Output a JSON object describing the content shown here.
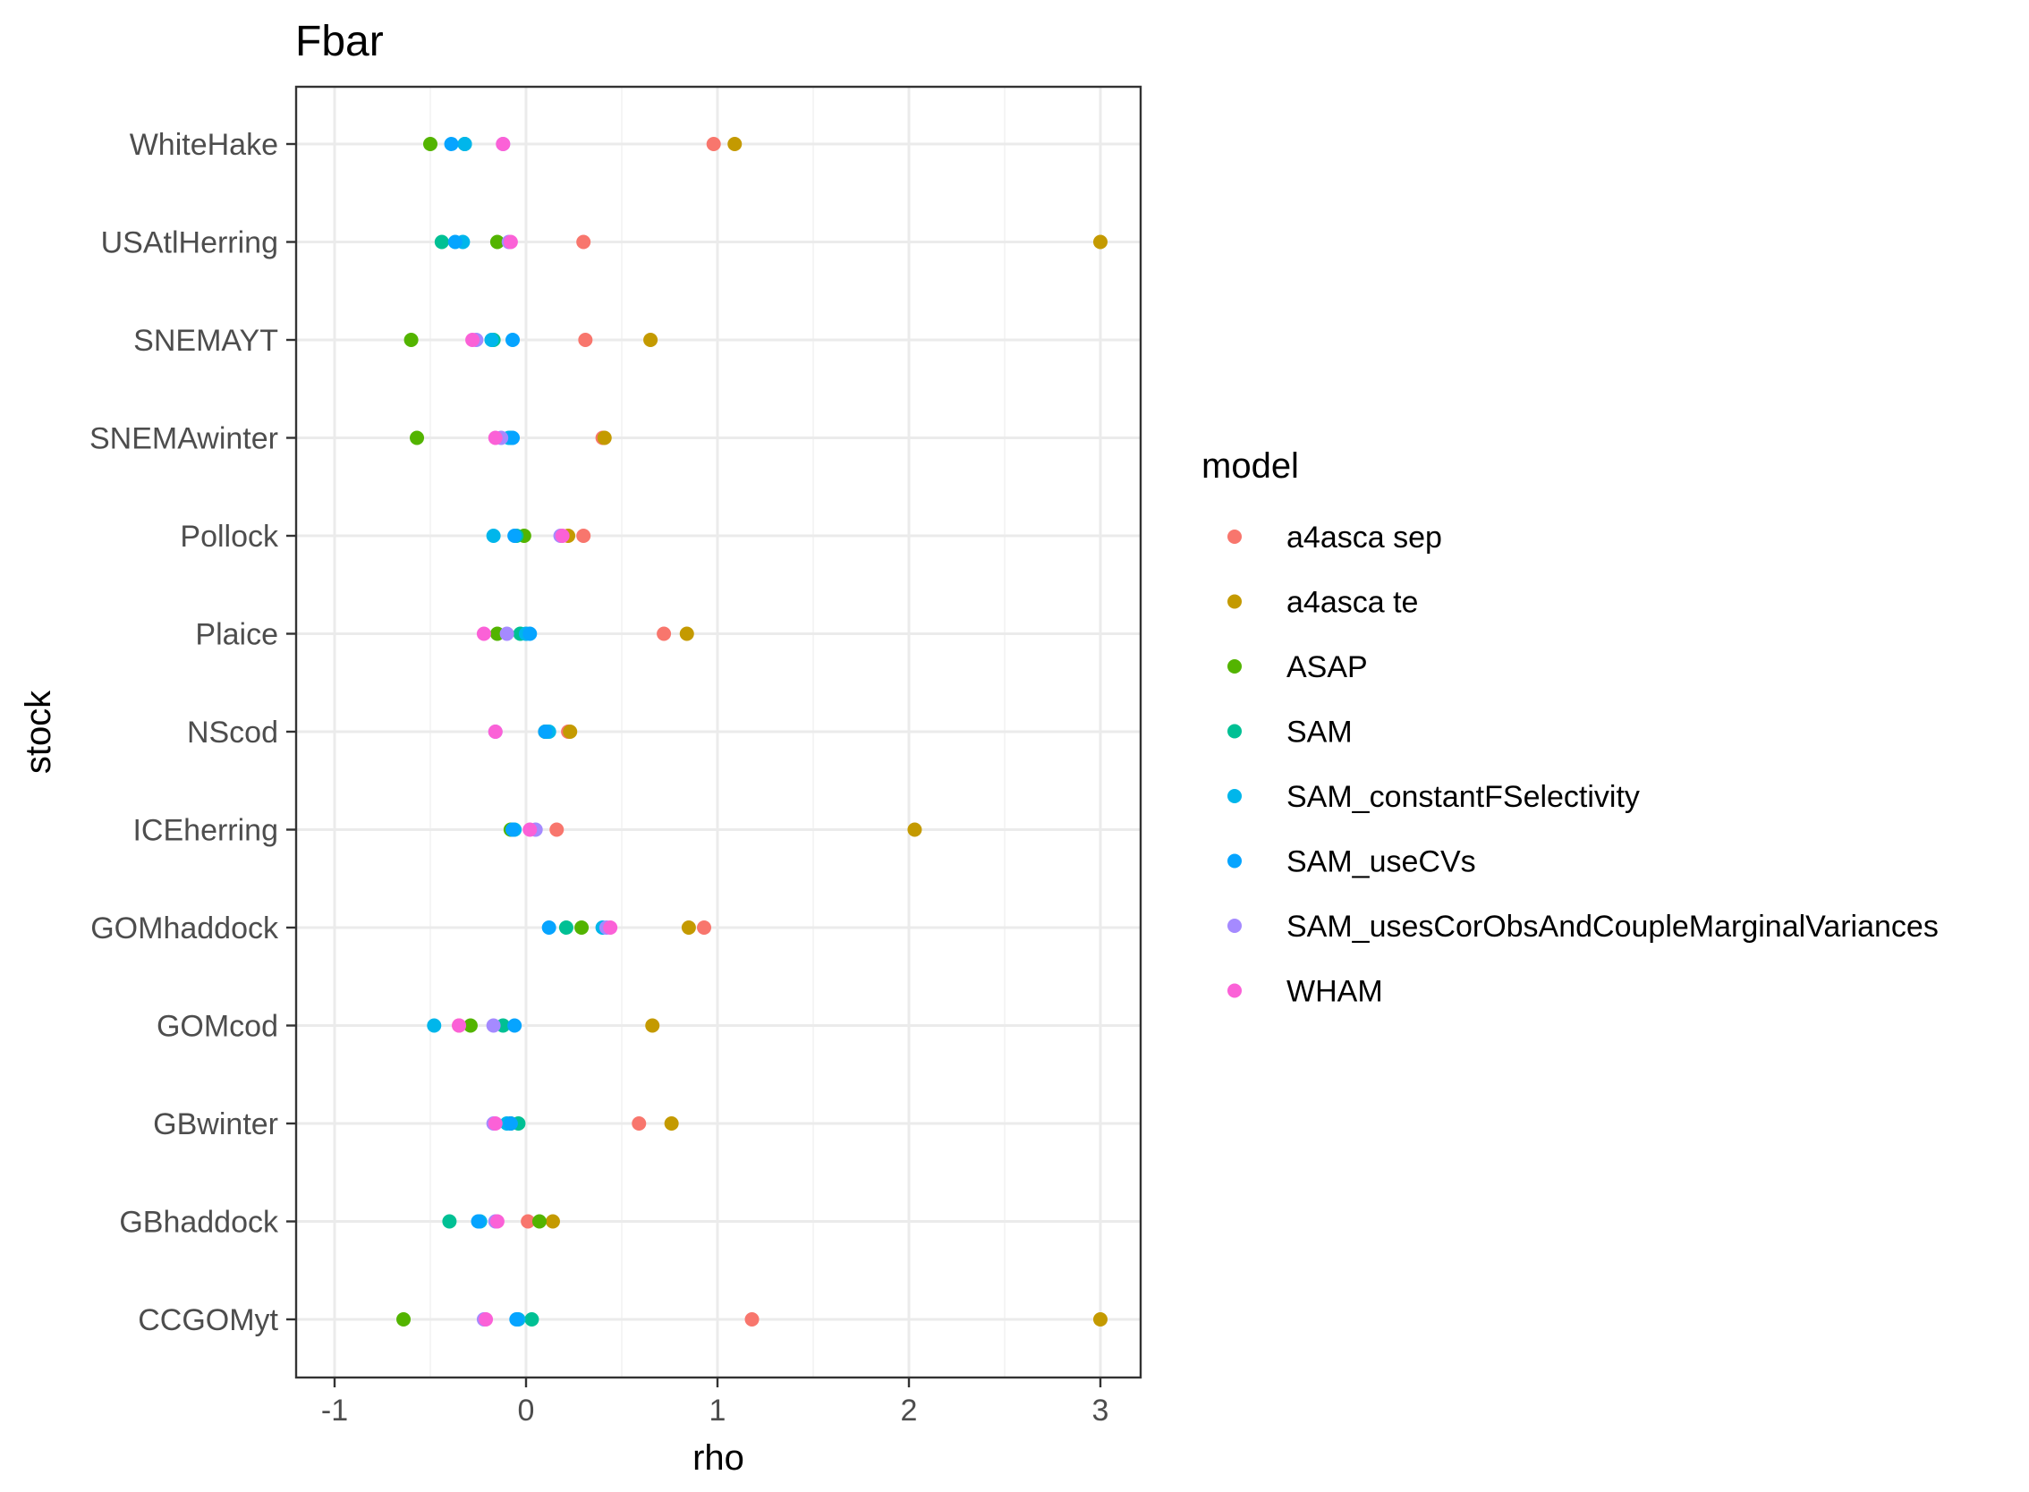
{
  "chart_data": {
    "type": "scatter",
    "title": "Fbar",
    "xlabel": "rho",
    "ylabel": "stock",
    "xlim": [
      -1.2,
      3.2
    ],
    "x_ticks": [
      -1,
      0,
      1,
      2,
      3
    ],
    "x_tick_labels": [
      "-1",
      "0",
      "1",
      "2",
      "3"
    ],
    "categories": [
      "WhiteHake",
      "USAtlHerring",
      "SNEMAYT",
      "SNEMAwinter",
      "Pollock",
      "Plaice",
      "NScod",
      "ICEherring",
      "GOMhaddock",
      "GOMcod",
      "GBwinter",
      "GBhaddock",
      "CCGOMyt"
    ],
    "grid": true,
    "legend_position": "right",
    "legend_title": "model",
    "series": [
      {
        "name": "a4asca sep",
        "color": "#F8766D",
        "values": [
          0.98,
          0.3,
          0.31,
          0.4,
          0.3,
          0.72,
          0.22,
          0.16,
          0.93,
          -0.35,
          0.59,
          0.01,
          1.18
        ]
      },
      {
        "name": "a4asca te",
        "color": "#C49A00",
        "values": [
          1.09,
          3.0,
          0.65,
          0.41,
          0.22,
          0.84,
          0.23,
          2.03,
          0.85,
          0.66,
          0.76,
          0.14,
          3.0
        ]
      },
      {
        "name": "ASAP",
        "color": "#53B400",
        "values": [
          -0.5,
          -0.15,
          -0.6,
          -0.57,
          -0.01,
          -0.15,
          0.1,
          -0.08,
          0.29,
          -0.29,
          -0.08,
          0.07,
          -0.64
        ]
      },
      {
        "name": "SAM",
        "color": "#00C094",
        "values": [
          -0.32,
          -0.44,
          -0.17,
          -0.08,
          -0.05,
          -0.03,
          0.11,
          -0.07,
          0.21,
          -0.12,
          -0.04,
          -0.4,
          0.03
        ]
      },
      {
        "name": "SAM_constantFSelectivity",
        "color": "#00B6EB",
        "values": [
          -0.32,
          -0.33,
          -0.18,
          -0.09,
          -0.17,
          0.0,
          0.12,
          -0.06,
          0.4,
          -0.48,
          -0.1,
          -0.24,
          -0.04
        ]
      },
      {
        "name": "SAM_useCVs",
        "color": "#06A4FF",
        "values": [
          -0.39,
          -0.37,
          -0.07,
          -0.07,
          -0.06,
          0.02,
          0.1,
          -0.07,
          0.12,
          -0.06,
          -0.08,
          -0.25,
          -0.05
        ]
      },
      {
        "name": "SAM_usesCorObsAndCoupleMarginalVariances",
        "color": "#A58AFF",
        "values": [
          -0.12,
          -0.09,
          -0.26,
          -0.13,
          0.18,
          -0.1,
          -0.16,
          0.05,
          0.42,
          -0.17,
          -0.17,
          -0.16,
          -0.22
        ]
      },
      {
        "name": "WHAM",
        "color": "#FB61D7",
        "values": [
          -0.12,
          -0.08,
          -0.28,
          -0.16,
          0.19,
          -0.22,
          -0.16,
          0.02,
          0.44,
          -0.35,
          -0.16,
          -0.15,
          -0.21
        ]
      }
    ]
  }
}
